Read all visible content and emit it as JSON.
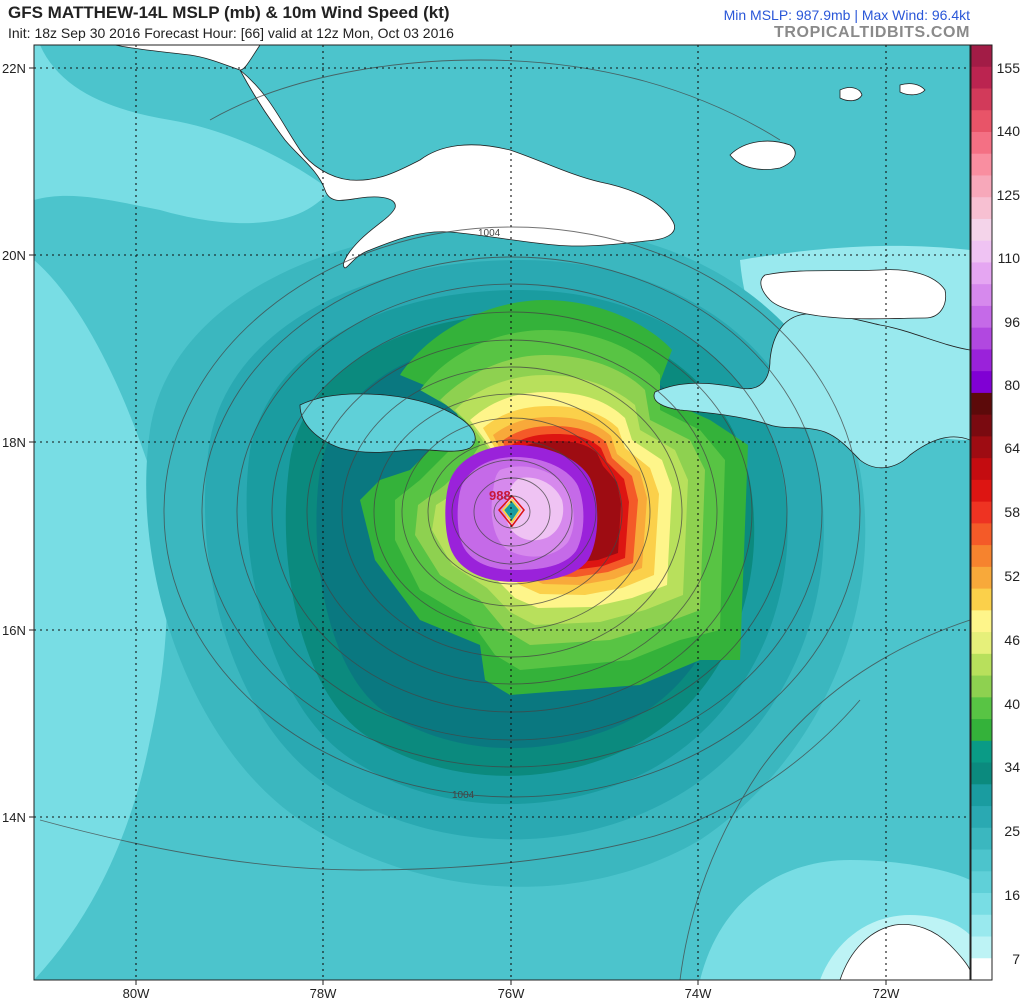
{
  "header": {
    "title": "GFS MATTHEW-14L MSLP (mb) & 10m Wind Speed (kt)",
    "subtitle": "Init: 18z Sep 30 2016   Forecast Hour: [66]   valid at 12z Mon, Oct 03 2016",
    "stats": "Min MSLP: 987.9mb | Max Wind: 96.4kt",
    "brand": "TROPICALTIDBITS.COM"
  },
  "map": {
    "lat_labels": [
      "22N",
      "20N",
      "18N",
      "16N",
      "14N"
    ],
    "lon_labels": [
      "80W",
      "78W",
      "76W",
      "74W",
      "72W"
    ],
    "storm_center_label": "988",
    "isobar_labels": [
      "1004",
      "1004"
    ]
  },
  "colorbar": {
    "labels": [
      "155",
      "140",
      "125",
      "110",
      "96",
      "80",
      "64",
      "58",
      "52",
      "46",
      "40",
      "34",
      "25",
      "16",
      "7"
    ],
    "colors": [
      "#a21c46",
      "#bb2450",
      "#d23a5a",
      "#e85468",
      "#f47084",
      "#f98ea0",
      "#f7a8ba",
      "#f7c0d2",
      "#f4d4ea",
      "#efc3f3",
      "#e5a6f2",
      "#d689ed",
      "#c56ae8",
      "#b148e0",
      "#9a22da",
      "#8000d4",
      "#5c0a0a",
      "#7a0a10",
      "#9e0c12",
      "#c40c10",
      "#dd1512",
      "#ee3322",
      "#f45a28",
      "#f6832e",
      "#f8a93a",
      "#fbd04a",
      "#fef58a",
      "#e6f07a",
      "#b8e05c",
      "#8ed150",
      "#58c444",
      "#34b23a",
      "#0a9b86",
      "#0b8a7e",
      "#1a9ca0",
      "#2aa9b2",
      "#3bb7bf",
      "#4cc4cc",
      "#5fd0d8",
      "#78dde4",
      "#99e9ee",
      "#bdf3f5",
      "#ffffff"
    ]
  }
}
